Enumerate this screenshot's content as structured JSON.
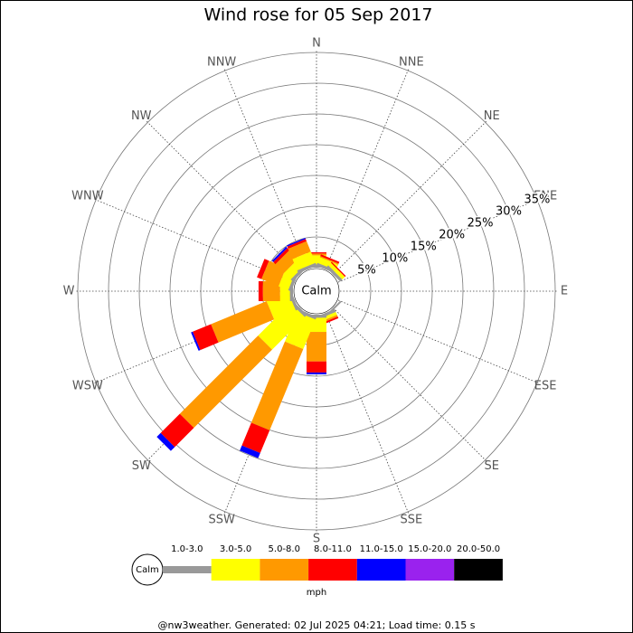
{
  "chart_data": {
    "type": "windrose",
    "title": "Wind rose for 05 Sep 2017",
    "center_label": "Calm",
    "categories": [
      "N",
      "NNE",
      "NE",
      "ENE",
      "E",
      "ESE",
      "SE",
      "SSE",
      "S",
      "SSW",
      "SW",
      "WSW",
      "W",
      "WNW",
      "NW",
      "NNW"
    ],
    "series": [
      {
        "name": "1.0-3.0",
        "color": "#999999",
        "values": [
          0.5,
          0.5,
          0.5,
          0,
          0,
          0,
          0.3,
          0.5,
          0.5,
          0.5,
          0.5,
          0.5,
          0.5,
          0.5,
          0.5,
          0.5
        ]
      },
      {
        "name": "3.0-5.0",
        "color": "#ffff00",
        "values": [
          1.5,
          1.0,
          0.6,
          0,
          0,
          0,
          0,
          0.5,
          2.3,
          5.2,
          7.5,
          3.8,
          1.6,
          1.7,
          1.5,
          2.0
        ]
      },
      {
        "name": "5.0-8.0",
        "color": "#ff9900",
        "values": [
          0.3,
          0.2,
          0,
          0,
          0,
          0,
          0,
          0.3,
          4.8,
          14.3,
          18.0,
          9.8,
          2.8,
          3.0,
          2.0,
          1.8
        ]
      },
      {
        "name": "8.0-11.0",
        "color": "#ff0000",
        "values": [
          0.2,
          0.3,
          0.2,
          0,
          0,
          0,
          0,
          0.3,
          1.8,
          4.0,
          4.4,
          3.2,
          0.7,
          0.8,
          0.5,
          0.4
        ]
      },
      {
        "name": "11.0-15.0",
        "color": "#0000ff",
        "values": [
          0,
          0,
          0,
          0,
          0,
          0,
          0,
          0,
          0.3,
          0.9,
          0.9,
          0.3,
          0,
          0,
          0.3,
          0.2
        ]
      },
      {
        "name": "15.0-20.0",
        "color": "#9a22ee",
        "values": [
          0,
          0,
          0,
          0,
          0,
          0,
          0,
          0,
          0,
          0,
          0,
          0,
          0,
          0,
          0,
          0
        ]
      },
      {
        "name": "20.0-50.0",
        "color": "#000000",
        "values": [
          0,
          0,
          0,
          0,
          0,
          0,
          0,
          0,
          0,
          0,
          0,
          0,
          0,
          0,
          0,
          0
        ]
      }
    ],
    "rlim": [
      0,
      35
    ],
    "rticks": [
      {
        "value": 5,
        "label": "5%"
      },
      {
        "value": 10,
        "label": "10%"
      },
      {
        "value": 15,
        "label": "15%"
      },
      {
        "value": 20,
        "label": "20%"
      },
      {
        "value": 25,
        "label": "25%"
      },
      {
        "value": 30,
        "label": "30%"
      },
      {
        "value": 35,
        "label": "35%"
      }
    ],
    "legend_unit": "mph",
    "footer": "@nw3weather. Generated: 02 Jul 2025 04:21; Load time: 0.15 s"
  }
}
